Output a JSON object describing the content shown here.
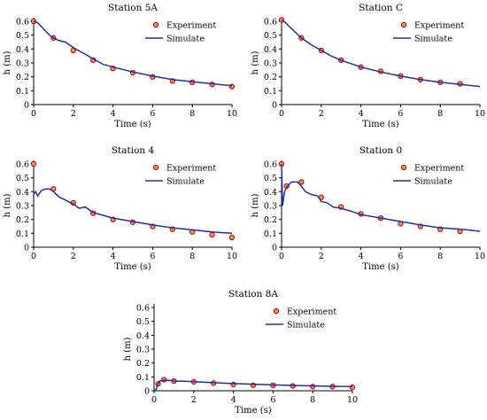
{
  "figure": {
    "legend_labels": {
      "experiment": "Experiment",
      "simulate": "Simulate"
    },
    "colors": {
      "experiment_marker_fill": "#f39a3a",
      "experiment_marker_edge": "#c0001a",
      "simulate_line": "#1f2fa8"
    }
  },
  "chart_data": [
    {
      "type": "line",
      "title": "Station 5A",
      "xlabel": "Time (s)",
      "ylabel": "h (m)",
      "xlim": [
        0,
        10
      ],
      "ylim": [
        0,
        0.6
      ],
      "xticks": [
        "0",
        "2",
        "4",
        "6",
        "8",
        "10"
      ],
      "yticks": [
        "0",
        "0.1",
        "0.2",
        "0.3",
        "0.4",
        "0.5",
        "0.6"
      ],
      "legend_position": "top-right",
      "series": [
        {
          "name": "Experiment",
          "kind": "scatter",
          "x": [
            0,
            1,
            2,
            3,
            4,
            5,
            6,
            7,
            8,
            9,
            10
          ],
          "y": [
            0.6,
            0.48,
            0.39,
            0.32,
            0.26,
            0.23,
            0.2,
            0.17,
            0.16,
            0.145,
            0.13
          ]
        },
        {
          "name": "Simulate",
          "kind": "line",
          "x": [
            0,
            0.2,
            0.4,
            0.6,
            0.8,
            1,
            1.3,
            1.6,
            2,
            2.5,
            3,
            3.5,
            4,
            5,
            6,
            7,
            8,
            9,
            10
          ],
          "y": [
            0.6,
            0.59,
            0.56,
            0.53,
            0.5,
            0.48,
            0.46,
            0.45,
            0.41,
            0.37,
            0.33,
            0.29,
            0.27,
            0.235,
            0.205,
            0.18,
            0.165,
            0.15,
            0.135
          ]
        }
      ]
    },
    {
      "type": "line",
      "title": "Station C",
      "xlabel": "Time (s)",
      "ylabel": "h (m)",
      "xlim": [
        0,
        10
      ],
      "ylim": [
        0,
        0.6
      ],
      "xticks": [
        "0",
        "2",
        "4",
        "6",
        "8",
        "10"
      ],
      "yticks": [
        "0",
        "0.1",
        "0.2",
        "0.3",
        "0.4",
        "0.5",
        "0.6"
      ],
      "legend_position": "top-right",
      "series": [
        {
          "name": "Experiment",
          "kind": "scatter",
          "x": [
            0,
            1,
            2,
            3,
            4,
            5,
            6,
            7,
            8,
            9
          ],
          "y": [
            0.61,
            0.48,
            0.39,
            0.32,
            0.27,
            0.24,
            0.205,
            0.18,
            0.16,
            0.15
          ]
        },
        {
          "name": "Simulate",
          "kind": "line",
          "x": [
            0,
            0.2,
            0.4,
            0.7,
            1,
            1.5,
            2,
            2.5,
            3,
            3.5,
            4,
            5,
            6,
            7,
            8,
            9,
            10
          ],
          "y": [
            0.61,
            0.59,
            0.56,
            0.52,
            0.48,
            0.43,
            0.39,
            0.35,
            0.32,
            0.295,
            0.27,
            0.235,
            0.205,
            0.18,
            0.16,
            0.145,
            0.13
          ]
        }
      ]
    },
    {
      "type": "line",
      "title": "Station 4",
      "xlabel": "Time (s)",
      "ylabel": "h (m)",
      "xlim": [
        0,
        10
      ],
      "ylim": [
        0,
        0.6
      ],
      "xticks": [
        "0",
        "2",
        "4",
        "6",
        "8",
        "10"
      ],
      "yticks": [
        "0",
        "0.1",
        "0.2",
        "0.3",
        "0.4",
        "0.5",
        "0.6"
      ],
      "legend_position": "top-right",
      "series": [
        {
          "name": "Experiment",
          "kind": "scatter",
          "x": [
            0,
            1,
            2,
            3,
            4,
            5,
            6,
            7,
            8,
            9,
            10
          ],
          "y": [
            0.6,
            0.42,
            0.32,
            0.245,
            0.2,
            0.18,
            0.15,
            0.13,
            0.11,
            0.09,
            0.07
          ]
        },
        {
          "name": "Simulate",
          "kind": "line",
          "x": [
            0,
            0.1,
            0.2,
            0.4,
            0.6,
            0.8,
            1,
            1.3,
            1.6,
            2,
            2.3,
            2.6,
            3,
            3.5,
            4,
            5,
            6,
            7,
            8,
            9,
            10
          ],
          "y": [
            0.38,
            0.4,
            0.37,
            0.41,
            0.42,
            0.42,
            0.4,
            0.36,
            0.34,
            0.31,
            0.28,
            0.29,
            0.25,
            0.23,
            0.21,
            0.185,
            0.16,
            0.14,
            0.125,
            0.11,
            0.1
          ]
        }
      ]
    },
    {
      "type": "line",
      "title": "Station 0",
      "xlabel": "Time (s)",
      "ylabel": "h (m)",
      "xlim": [
        0,
        10
      ],
      "ylim": [
        0,
        0.6
      ],
      "xticks": [
        "0",
        "2",
        "4",
        "6",
        "8",
        "10"
      ],
      "yticks": [
        "0",
        "0.1",
        "0.2",
        "0.3",
        "0.4",
        "0.5",
        "0.6"
      ],
      "legend_position": "top-right",
      "series": [
        {
          "name": "Experiment",
          "kind": "scatter",
          "x": [
            0,
            0.25,
            1,
            2,
            3,
            4,
            5,
            6,
            7,
            8,
            9
          ],
          "y": [
            0.6,
            0.44,
            0.47,
            0.36,
            0.29,
            0.24,
            0.21,
            0.17,
            0.15,
            0.13,
            0.115
          ]
        },
        {
          "name": "Simulate",
          "kind": "line",
          "x": [
            0,
            0.05,
            0.15,
            0.3,
            0.5,
            0.8,
            1,
            1.2,
            1.5,
            1.8,
            2,
            2.3,
            2.6,
            3,
            3.5,
            4,
            5,
            6,
            7,
            8,
            9,
            10
          ],
          "y": [
            0.6,
            0.3,
            0.4,
            0.44,
            0.47,
            0.47,
            0.44,
            0.4,
            0.38,
            0.37,
            0.33,
            0.32,
            0.29,
            0.28,
            0.26,
            0.235,
            0.21,
            0.185,
            0.16,
            0.14,
            0.13,
            0.115
          ]
        }
      ]
    },
    {
      "type": "line",
      "title": "Station 8A",
      "xlabel": "Time (s)",
      "ylabel": "h (m)",
      "xlim": [
        0,
        10
      ],
      "ylim": [
        0,
        0.6
      ],
      "xticks": [
        "0",
        "2",
        "4",
        "6",
        "8",
        "10"
      ],
      "yticks": [
        "0",
        "0.1",
        "0.2",
        "0.3",
        "0.4",
        "0.5",
        "0.6"
      ],
      "legend_position": "top-right",
      "series": [
        {
          "name": "Experiment",
          "kind": "scatter",
          "x": [
            0.2,
            0.5,
            1,
            2,
            3,
            4,
            5,
            6,
            7,
            8,
            9,
            10
          ],
          "y": [
            0.05,
            0.08,
            0.07,
            0.065,
            0.055,
            0.045,
            0.04,
            0.04,
            0.035,
            0.03,
            0.03,
            0.025
          ]
        },
        {
          "name": "Simulate",
          "kind": "line",
          "x": [
            0,
            0.1,
            0.2,
            0.3,
            0.5,
            0.8,
            1,
            1.5,
            2,
            3,
            4,
            5,
            6,
            7,
            8,
            9,
            10
          ],
          "y": [
            0,
            0.01,
            0.05,
            0.07,
            0.075,
            0.075,
            0.07,
            0.068,
            0.065,
            0.058,
            0.052,
            0.047,
            0.042,
            0.038,
            0.035,
            0.032,
            0.03
          ]
        }
      ]
    }
  ]
}
